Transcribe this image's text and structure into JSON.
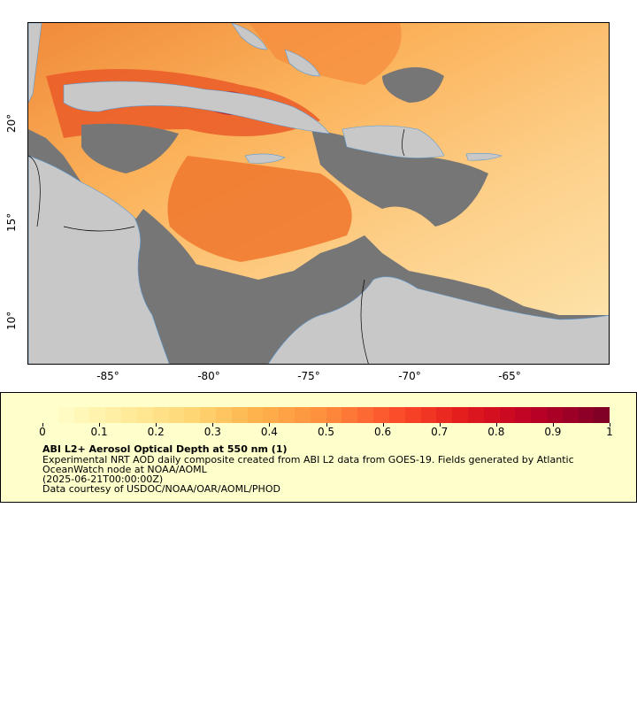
{
  "map": {
    "x_ticks": [
      "-85°",
      "-80°",
      "-75°",
      "-70°",
      "-65°"
    ],
    "y_ticks": [
      "20°",
      "15°",
      "10°"
    ],
    "colors": {
      "ocean_nodata": "#767676",
      "land": "#c8c8c8",
      "border": "#000000",
      "river": "#5b9bd5"
    }
  },
  "legend": {
    "colorbar_ticks": [
      "0",
      "0.1",
      "0.2",
      "0.3",
      "0.4",
      "0.5",
      "0.6",
      "0.7",
      "0.8",
      "0.9",
      "1"
    ],
    "title": "ABI L2+ Aerosol Optical Depth at 550 nm (1)",
    "line1": "Experimental NRT AOD daily composite created from ABI L2 data from GOES-19. Fields generated by Atlantic",
    "line2": "OceanWatch node at NOAA/AOML",
    "line3": "(2025-06-21T00:00:00Z)",
    "line4": "Data courtesy of USDOC/NOAA/OAR/AOML/PHOD"
  }
}
